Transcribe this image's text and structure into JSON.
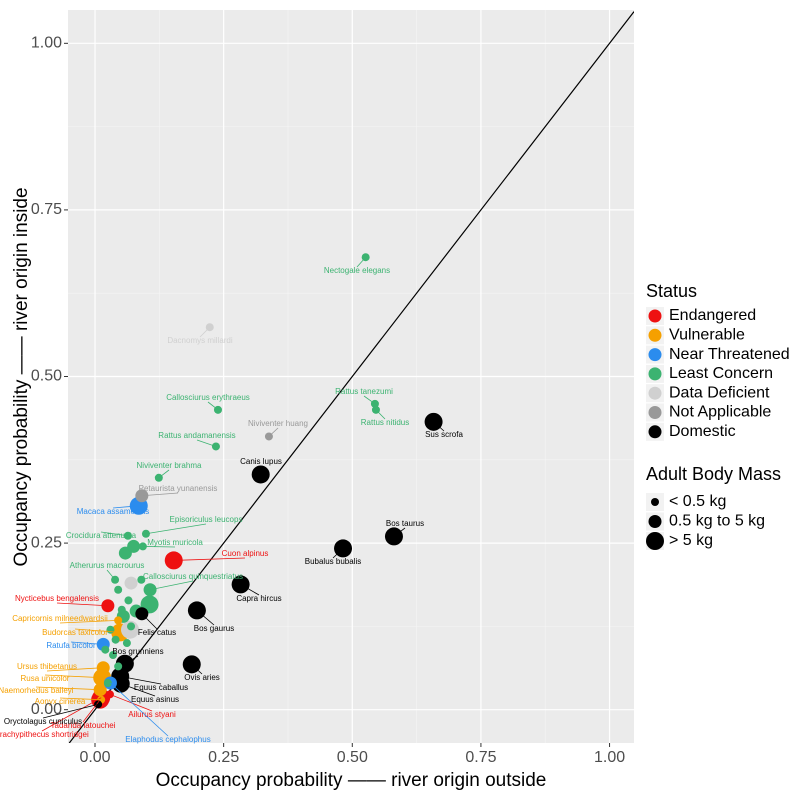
{
  "chart_data": {
    "type": "scatter",
    "x_label": "Occupancy probability —— river origin outside",
    "y_label": "Occupancy probability —— river origin inside",
    "xlim": [
      -0.0525,
      1.0475
    ],
    "ylim": [
      -0.05,
      1.05
    ],
    "xticks": [
      {
        "value": 0,
        "label": "0.00"
      },
      {
        "value": 0.25,
        "label": "0.25"
      },
      {
        "value": 0.5,
        "label": "0.50"
      },
      {
        "value": 0.75,
        "label": "0.75"
      },
      {
        "value": 1,
        "label": "1.00"
      }
    ],
    "yticks": [
      {
        "value": 0,
        "label": "0.00"
      },
      {
        "value": 0.25,
        "label": "0.25"
      },
      {
        "value": 0.5,
        "label": "0.50"
      },
      {
        "value": 0.75,
        "label": "0.75"
      },
      {
        "value": 1,
        "label": "1.00"
      }
    ],
    "grid": true,
    "diagonal": true,
    "legend_title": "Status",
    "size_legend": {
      "title": "Adult Body Mass",
      "labels": [
        "< 0.5 kg",
        "0.5 kg to 5 kg",
        "> 5 kg"
      ],
      "sizes": [
        1,
        2,
        3
      ]
    },
    "series": [
      {
        "name": "Endangered",
        "color": "#ee1111",
        "labels": [
          "Cuon alpinus",
          "Nycticebus bengalensis",
          "Ailurus styani",
          "Tadarida latouchei",
          "Trachypithecus shortridgei"
        ],
        "x": [
          0.153,
          0.025,
          0.029,
          0.01,
          0.012
        ],
        "values": [
          0.224,
          0.156,
          0.023,
          0.015,
          0.018
        ],
        "sizes": [
          3,
          2,
          1,
          3,
          3
        ]
      },
      {
        "name": "Vulnerable",
        "color": "#f5a000",
        "labels": [
          "Capricornis milneedwardsii",
          "Budorcas taxicolor",
          "Ursus thibetanus",
          "Rusa unicolor",
          "Naemorhedus baileyi",
          "Aonyx cinerea"
        ],
        "x": [
          0.045,
          0.049,
          0.016,
          0.014,
          0.01,
          0.012
        ],
        "values": [
          0.134,
          0.116,
          0.063,
          0.048,
          0.03,
          0.015
        ],
        "sizes": [
          1,
          3,
          2,
          3,
          2,
          1
        ]
      },
      {
        "name": "Near Threatened",
        "color": "#2b8cee",
        "labels": [
          "Macaca assamensis",
          "Ratufa bicolor",
          "Elaphodus cephalophus"
        ],
        "x": [
          0.085,
          0.016,
          0.03
        ],
        "values": [
          0.306,
          0.098,
          0.04
        ],
        "sizes": [
          3,
          2,
          2
        ]
      },
      {
        "name": "Least Concern",
        "color": "#3cb371",
        "labels": [
          "Nectogale elegans",
          "Callosciurus erythraeus",
          "Rattus tanezumi",
          "Rattus nitidus",
          "Rattus andamanensis",
          "Niviventer brahma",
          "Episoriculus leucops",
          "Crocidura attenuata",
          "Myotis muricola",
          "Atherurus macrourus",
          "Callosciurus quinquestriatus",
          null,
          null,
          null,
          null,
          null,
          null,
          null,
          null,
          null,
          null,
          null,
          null,
          null,
          null,
          null,
          null,
          null
        ],
        "x": [
          0.526,
          0.239,
          0.544,
          0.546,
          0.235,
          0.124,
          0.099,
          0.064,
          0.093,
          0.039,
          0.107,
          0.059,
          0.075,
          0.106,
          0.065,
          0.08,
          0.052,
          0.055,
          0.07,
          0.03,
          0.04,
          0.02,
          0.035,
          0.062,
          0.045,
          0.025,
          0.09,
          0.045
        ],
        "values": [
          0.679,
          0.45,
          0.459,
          0.45,
          0.395,
          0.348,
          0.264,
          0.261,
          0.245,
          0.195,
          0.18,
          0.235,
          0.245,
          0.158,
          0.164,
          0.148,
          0.15,
          0.14,
          0.125,
          0.12,
          0.105,
          0.09,
          0.082,
          0.1,
          0.065,
          0.04,
          0.195,
          0.18
        ],
        "sizes": [
          1,
          1,
          1,
          1,
          1,
          1,
          1,
          1,
          1,
          1,
          2,
          2,
          2,
          3,
          1,
          2,
          1,
          2,
          1,
          1,
          1,
          1,
          1,
          1,
          1,
          1,
          1,
          1
        ]
      },
      {
        "name": "Data Deficient",
        "color": "#d0d0d0",
        "labels": [
          "Dacnomys millardi",
          null,
          null
        ],
        "x": [
          0.223,
          0.068,
          0.07
        ],
        "values": [
          0.574,
          0.12,
          0.19
        ],
        "sizes": [
          1,
          3,
          2
        ]
      },
      {
        "name": "Not Applicable",
        "color": "#999999",
        "labels": [
          "Niviventer huang",
          "Petaurista yunanensis"
        ],
        "x": [
          0.338,
          0.091
        ],
        "values": [
          0.41,
          0.321
        ],
        "sizes": [
          1,
          2
        ]
      },
      {
        "name": "Domestic",
        "color": "#000000",
        "labels": [
          "Sus scrofa",
          "Canis lupus",
          "Bos taurus",
          "Bubalus bubalis",
          "Capra hircus",
          "Bos gaurus",
          "Felis catus",
          "Bos grunniens",
          "Ovis aries",
          "Equus caballus",
          "Equus asinus",
          "Oryctolagus cuniculus"
        ],
        "x": [
          0.658,
          0.322,
          0.581,
          0.482,
          0.283,
          0.198,
          0.091,
          0.058,
          0.188,
          0.049,
          0.05,
          0.006
        ],
        "values": [
          0.432,
          0.353,
          0.26,
          0.242,
          0.188,
          0.149,
          0.144,
          0.069,
          0.068,
          0.05,
          0.039,
          0.008
        ],
        "sizes": [
          3,
          3,
          3,
          3,
          3,
          3,
          2,
          3,
          3,
          3,
          3,
          1
        ]
      }
    ]
  }
}
